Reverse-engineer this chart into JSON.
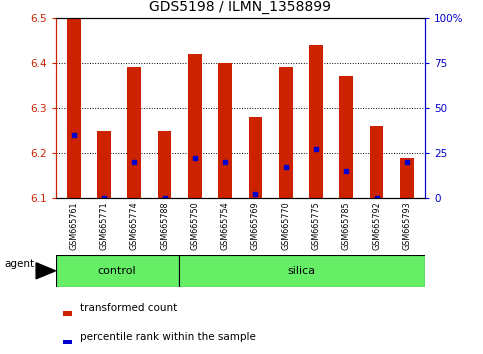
{
  "title": "GDS5198 / ILMN_1358899",
  "samples": [
    "GSM665761",
    "GSM665771",
    "GSM665774",
    "GSM665788",
    "GSM665750",
    "GSM665754",
    "GSM665769",
    "GSM665770",
    "GSM665775",
    "GSM665785",
    "GSM665792",
    "GSM665793"
  ],
  "transformed_counts": [
    6.5,
    6.25,
    6.39,
    6.25,
    6.42,
    6.4,
    6.28,
    6.39,
    6.44,
    6.37,
    6.26,
    6.19
  ],
  "percentile_values": [
    6.24,
    6.1,
    6.18,
    6.1,
    6.19,
    6.18,
    6.11,
    6.17,
    6.21,
    6.16,
    6.1,
    6.18
  ],
  "ylim_left": [
    6.1,
    6.5
  ],
  "ylim_right": [
    0,
    100
  ],
  "bar_color": "#cc2200",
  "marker_color": "#0000cc",
  "control_count": 4,
  "silica_count": 8,
  "control_label": "control",
  "silica_label": "silica",
  "agent_label": "agent",
  "legend_bar_label": "transformed count",
  "legend_marker_label": "percentile rank within the sample",
  "band_color": "#66ee66",
  "title_fontsize": 10,
  "tick_fontsize": 7.5,
  "right_axis_color": "#0000cc",
  "left_axis_color": "#cc2200",
  "bar_width": 0.45
}
